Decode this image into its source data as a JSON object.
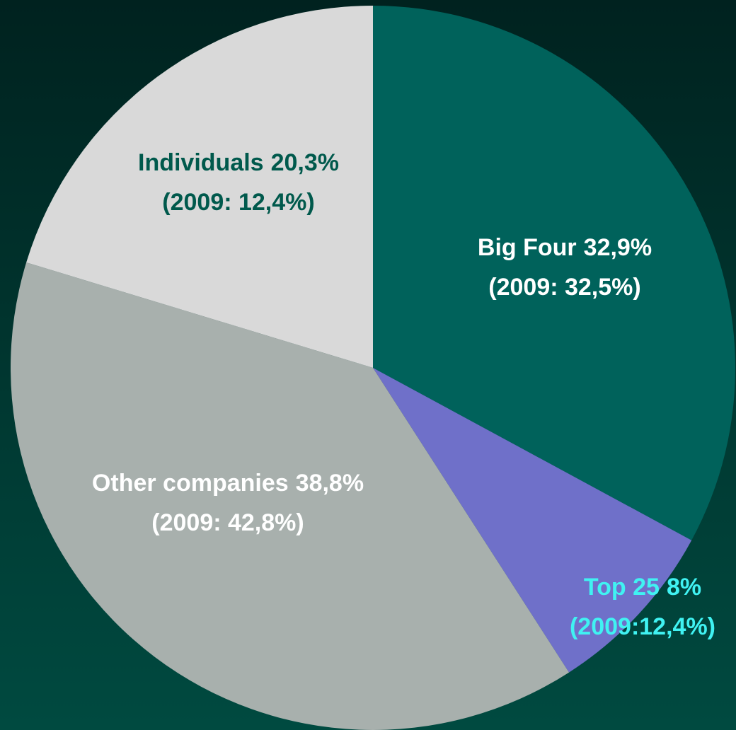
{
  "chart_data": {
    "type": "pie",
    "categories": [
      "Big Four",
      "Top 25",
      "Other companies",
      "Individuals"
    ],
    "values": [
      32.9,
      8,
      38.8,
      20.3
    ],
    "value_labels": [
      "32,9%",
      "8%",
      "38,8%",
      "20,3%"
    ],
    "prior_labels": [
      "(2009: 32,5%)",
      "(2009:12,4%)",
      "(2009: 42,8%)",
      "(2009: 12,4%)"
    ],
    "colors": [
      "#00625b",
      "#6f70c9",
      "#a8b0ad",
      "#d9d9d9"
    ],
    "label_colors": [
      "#ffffff",
      "#40f2f2",
      "#ffffff",
      "#00594c"
    ]
  }
}
